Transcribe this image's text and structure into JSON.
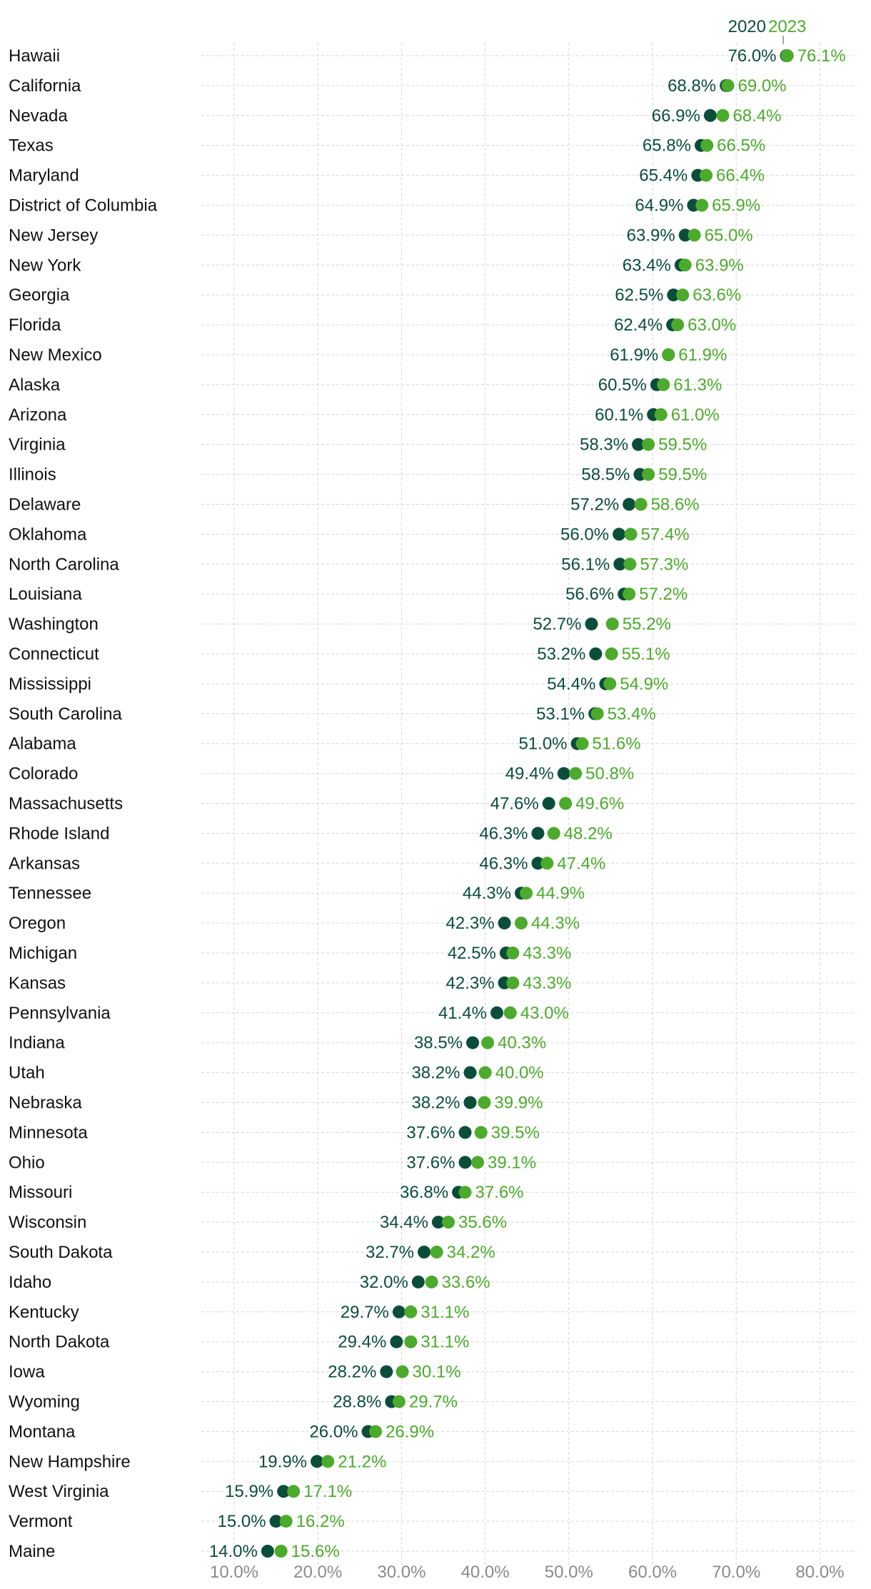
{
  "chart_data": {
    "type": "dumbbell",
    "legend": {
      "series_2020": "2020",
      "series_2023": "2023"
    },
    "colors": {
      "series_2020": "#0b4d3b",
      "series_2023": "#4caa2c",
      "grid": "#d6d6d6",
      "text": "#111111",
      "tick": "#8a8a8a"
    },
    "xlim": [
      10,
      84
    ],
    "ticks": [
      10,
      20,
      30,
      40,
      50,
      60,
      70,
      80
    ],
    "tick_labels": [
      "10.0%",
      "20.0%",
      "30.0%",
      "40.0%",
      "50.0%",
      "60.0%",
      "70.0%",
      "80.0%"
    ],
    "rows": [
      {
        "state": "Hawaii",
        "v2020": 76.0,
        "v2023": 76.1,
        "l2020": "76.0%",
        "l2023": "76.1%"
      },
      {
        "state": "California",
        "v2020": 68.8,
        "v2023": 69.0,
        "l2020": "68.8%",
        "l2023": "69.0%"
      },
      {
        "state": "Nevada",
        "v2020": 66.9,
        "v2023": 68.4,
        "l2020": "66.9%",
        "l2023": "68.4%"
      },
      {
        "state": "Texas",
        "v2020": 65.8,
        "v2023": 66.5,
        "l2020": "65.8%",
        "l2023": "66.5%"
      },
      {
        "state": "Maryland",
        "v2020": 65.4,
        "v2023": 66.4,
        "l2020": "65.4%",
        "l2023": "66.4%"
      },
      {
        "state": "District of Columbia",
        "v2020": 64.9,
        "v2023": 65.9,
        "l2020": "64.9%",
        "l2023": "65.9%"
      },
      {
        "state": "New Jersey",
        "v2020": 63.9,
        "v2023": 65.0,
        "l2020": "63.9%",
        "l2023": "65.0%"
      },
      {
        "state": "New York",
        "v2020": 63.4,
        "v2023": 63.9,
        "l2020": "63.4%",
        "l2023": "63.9%"
      },
      {
        "state": "Georgia",
        "v2020": 62.5,
        "v2023": 63.6,
        "l2020": "62.5%",
        "l2023": "63.6%"
      },
      {
        "state": "Florida",
        "v2020": 62.4,
        "v2023": 63.0,
        "l2020": "62.4%",
        "l2023": "63.0%"
      },
      {
        "state": "New Mexico",
        "v2020": 61.9,
        "v2023": 61.9,
        "l2020": "61.9%",
        "l2023": "61.9%"
      },
      {
        "state": "Alaska",
        "v2020": 60.5,
        "v2023": 61.3,
        "l2020": "60.5%",
        "l2023": "61.3%"
      },
      {
        "state": "Arizona",
        "v2020": 60.1,
        "v2023": 61.0,
        "l2020": "60.1%",
        "l2023": "61.0%"
      },
      {
        "state": "Virginia",
        "v2020": 58.3,
        "v2023": 59.5,
        "l2020": "58.3%",
        "l2023": "59.5%"
      },
      {
        "state": "Illinois",
        "v2020": 58.5,
        "v2023": 59.5,
        "l2020": "58.5%",
        "l2023": "59.5%"
      },
      {
        "state": "Delaware",
        "v2020": 57.2,
        "v2023": 58.6,
        "l2020": "57.2%",
        "l2023": "58.6%"
      },
      {
        "state": "Oklahoma",
        "v2020": 56.0,
        "v2023": 57.4,
        "l2020": "56.0%",
        "l2023": "57.4%"
      },
      {
        "state": "North Carolina",
        "v2020": 56.1,
        "v2023": 57.3,
        "l2020": "56.1%",
        "l2023": "57.3%"
      },
      {
        "state": "Louisiana",
        "v2020": 56.6,
        "v2023": 57.2,
        "l2020": "56.6%",
        "l2023": "57.2%"
      },
      {
        "state": "Washington",
        "v2020": 52.7,
        "v2023": 55.2,
        "l2020": "52.7%",
        "l2023": "55.2%"
      },
      {
        "state": "Connecticut",
        "v2020": 53.2,
        "v2023": 55.1,
        "l2020": "53.2%",
        "l2023": "55.1%"
      },
      {
        "state": "Mississippi",
        "v2020": 54.4,
        "v2023": 54.9,
        "l2020": "54.4%",
        "l2023": "54.9%"
      },
      {
        "state": "South Carolina",
        "v2020": 53.1,
        "v2023": 53.4,
        "l2020": "53.1%",
        "l2023": "53.4%"
      },
      {
        "state": "Alabama",
        "v2020": 51.0,
        "v2023": 51.6,
        "l2020": "51.0%",
        "l2023": "51.6%"
      },
      {
        "state": "Colorado",
        "v2020": 49.4,
        "v2023": 50.8,
        "l2020": "49.4%",
        "l2023": "50.8%"
      },
      {
        "state": "Massachusetts",
        "v2020": 47.6,
        "v2023": 49.6,
        "l2020": "47.6%",
        "l2023": "49.6%"
      },
      {
        "state": "Rhode Island",
        "v2020": 46.3,
        "v2023": 48.2,
        "l2020": "46.3%",
        "l2023": "48.2%"
      },
      {
        "state": "Arkansas",
        "v2020": 46.3,
        "v2023": 47.4,
        "l2020": "46.3%",
        "l2023": "47.4%"
      },
      {
        "state": "Tennessee",
        "v2020": 44.3,
        "v2023": 44.9,
        "l2020": "44.3%",
        "l2023": "44.9%"
      },
      {
        "state": "Oregon",
        "v2020": 42.3,
        "v2023": 44.3,
        "l2020": "42.3%",
        "l2023": "44.3%"
      },
      {
        "state": "Michigan",
        "v2020": 42.5,
        "v2023": 43.3,
        "l2020": "42.5%",
        "l2023": "43.3%"
      },
      {
        "state": "Kansas",
        "v2020": 42.3,
        "v2023": 43.3,
        "l2020": "42.3%",
        "l2023": "43.3%"
      },
      {
        "state": "Pennsylvania",
        "v2020": 41.4,
        "v2023": 43.0,
        "l2020": "41.4%",
        "l2023": "43.0%"
      },
      {
        "state": "Indiana",
        "v2020": 38.5,
        "v2023": 40.3,
        "l2020": "38.5%",
        "l2023": "40.3%"
      },
      {
        "state": "Utah",
        "v2020": 38.2,
        "v2023": 40.0,
        "l2020": "38.2%",
        "l2023": "40.0%"
      },
      {
        "state": "Nebraska",
        "v2020": 38.2,
        "v2023": 39.9,
        "l2020": "38.2%",
        "l2023": "39.9%"
      },
      {
        "state": "Minnesota",
        "v2020": 37.6,
        "v2023": 39.5,
        "l2020": "37.6%",
        "l2023": "39.5%"
      },
      {
        "state": "Ohio",
        "v2020": 37.6,
        "v2023": 39.1,
        "l2020": "37.6%",
        "l2023": "39.1%"
      },
      {
        "state": "Missouri",
        "v2020": 36.8,
        "v2023": 37.6,
        "l2020": "36.8%",
        "l2023": "37.6%"
      },
      {
        "state": "Wisconsin",
        "v2020": 34.4,
        "v2023": 35.6,
        "l2020": "34.4%",
        "l2023": "35.6%"
      },
      {
        "state": "South Dakota",
        "v2020": 32.7,
        "v2023": 34.2,
        "l2020": "32.7%",
        "l2023": "34.2%"
      },
      {
        "state": "Idaho",
        "v2020": 32.0,
        "v2023": 33.6,
        "l2020": "32.0%",
        "l2023": "33.6%"
      },
      {
        "state": "Kentucky",
        "v2020": 29.7,
        "v2023": 31.1,
        "l2020": "29.7%",
        "l2023": "31.1%"
      },
      {
        "state": "North Dakota",
        "v2020": 29.4,
        "v2023": 31.1,
        "l2020": "29.4%",
        "l2023": "31.1%"
      },
      {
        "state": "Iowa",
        "v2020": 28.2,
        "v2023": 30.1,
        "l2020": "28.2%",
        "l2023": "30.1%"
      },
      {
        "state": "Wyoming",
        "v2020": 28.8,
        "v2023": 29.7,
        "l2020": "28.8%",
        "l2023": "29.7%"
      },
      {
        "state": "Montana",
        "v2020": 26.0,
        "v2023": 26.9,
        "l2020": "26.0%",
        "l2023": "26.9%"
      },
      {
        "state": "New Hampshire",
        "v2020": 19.9,
        "v2023": 21.2,
        "l2020": "19.9%",
        "l2023": "21.2%"
      },
      {
        "state": "West Virginia",
        "v2020": 15.9,
        "v2023": 17.1,
        "l2020": "15.9%",
        "l2023": "17.1%"
      },
      {
        "state": "Vermont",
        "v2020": 15.0,
        "v2023": 16.2,
        "l2020": "15.0%",
        "l2023": "16.2%"
      },
      {
        "state": "Maine",
        "v2020": 14.0,
        "v2023": 15.6,
        "l2020": "14.0%",
        "l2023": "15.6%"
      }
    ]
  }
}
